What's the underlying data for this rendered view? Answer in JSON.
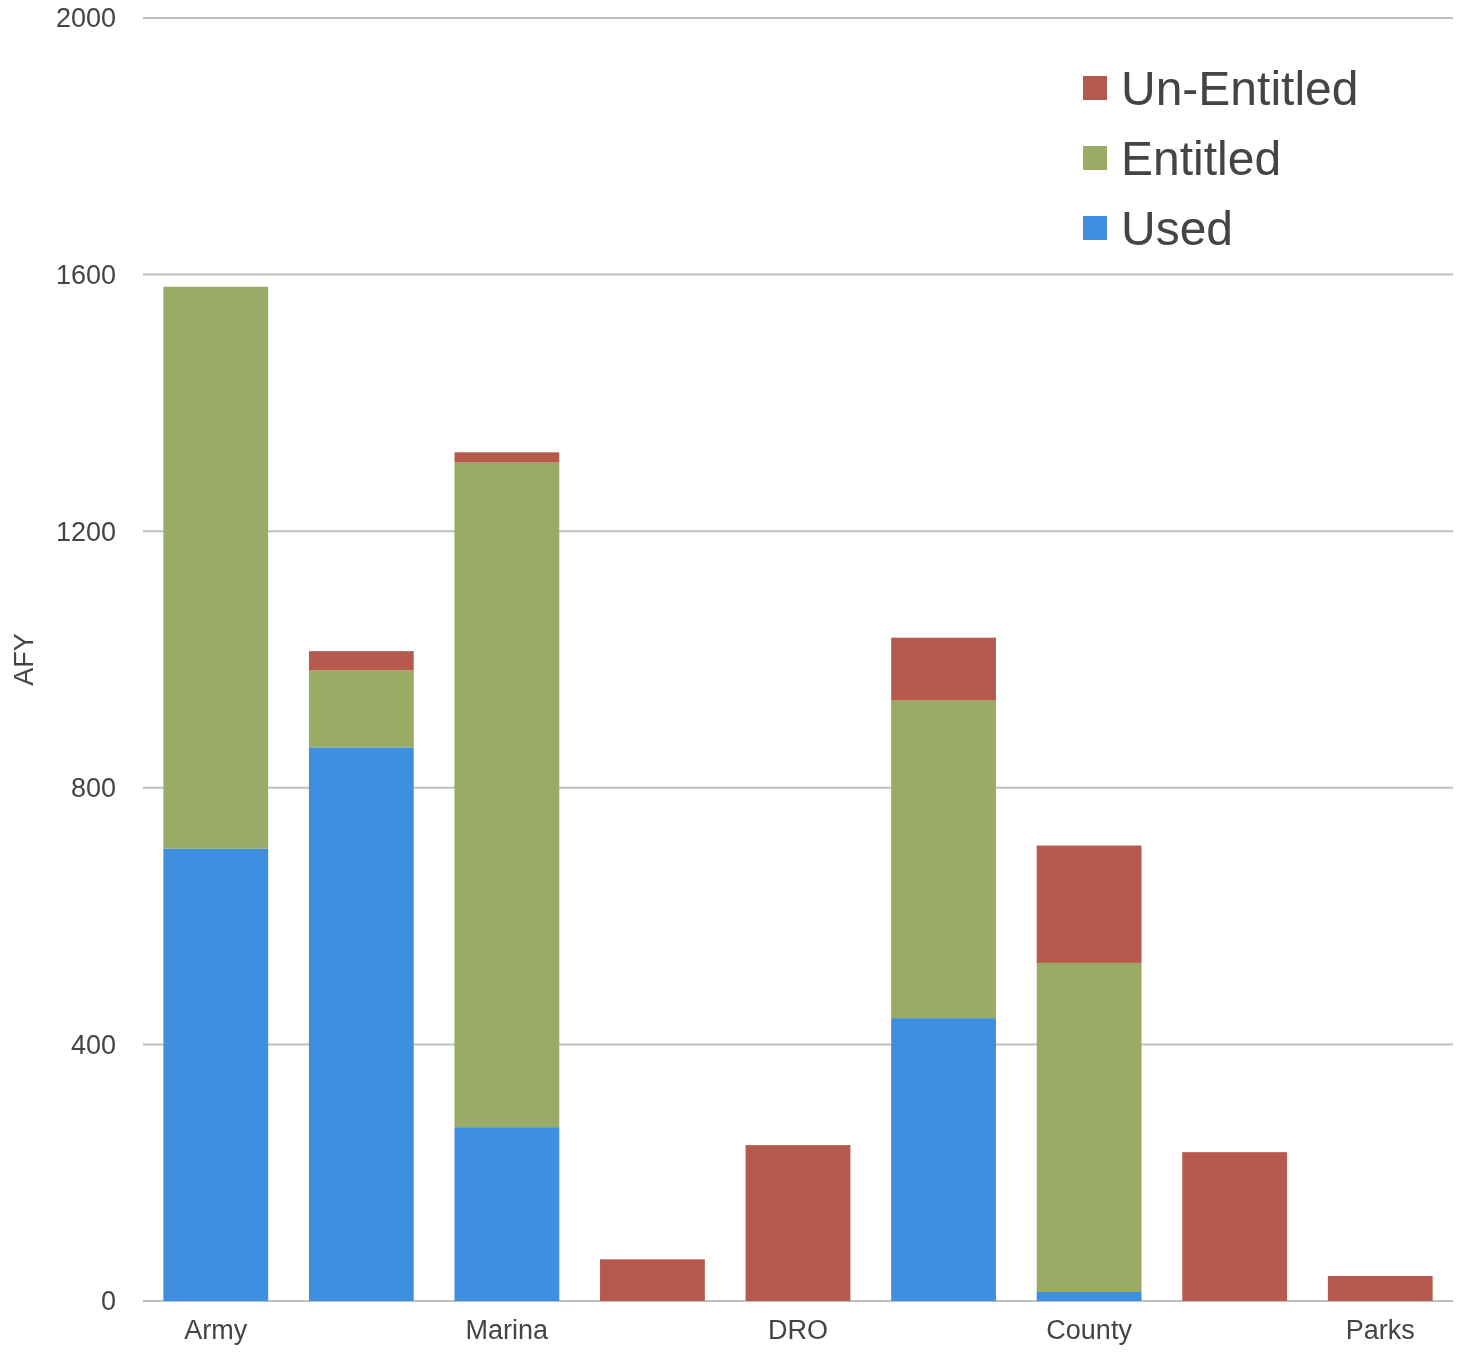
{
  "chart_data": {
    "type": "bar",
    "ylabel": "AFY",
    "categories": [
      "Army",
      null,
      "Marina",
      null,
      "DRO",
      null,
      "County",
      null,
      "Parks"
    ],
    "stacked": true,
    "series": [
      {
        "name": "Used",
        "color": "#3f8fe0",
        "values": [
          705,
          863,
          271,
          0,
          0,
          441,
          14,
          0,
          0
        ]
      },
      {
        "name": "Entitled",
        "color": "#9aab65",
        "values": [
          876,
          120,
          1036,
          0,
          0,
          495,
          513,
          0,
          0
        ]
      },
      {
        "name": "Un-Entitled",
        "color": "#b55a4c",
        "values": [
          0,
          30,
          16,
          65,
          243,
          98,
          183,
          232,
          39
        ]
      }
    ],
    "ylim": [
      0,
      2000
    ],
    "yticks": [
      0,
      400,
      800,
      1200,
      1600,
      2000
    ],
    "grid": "y",
    "legend": "top right"
  }
}
